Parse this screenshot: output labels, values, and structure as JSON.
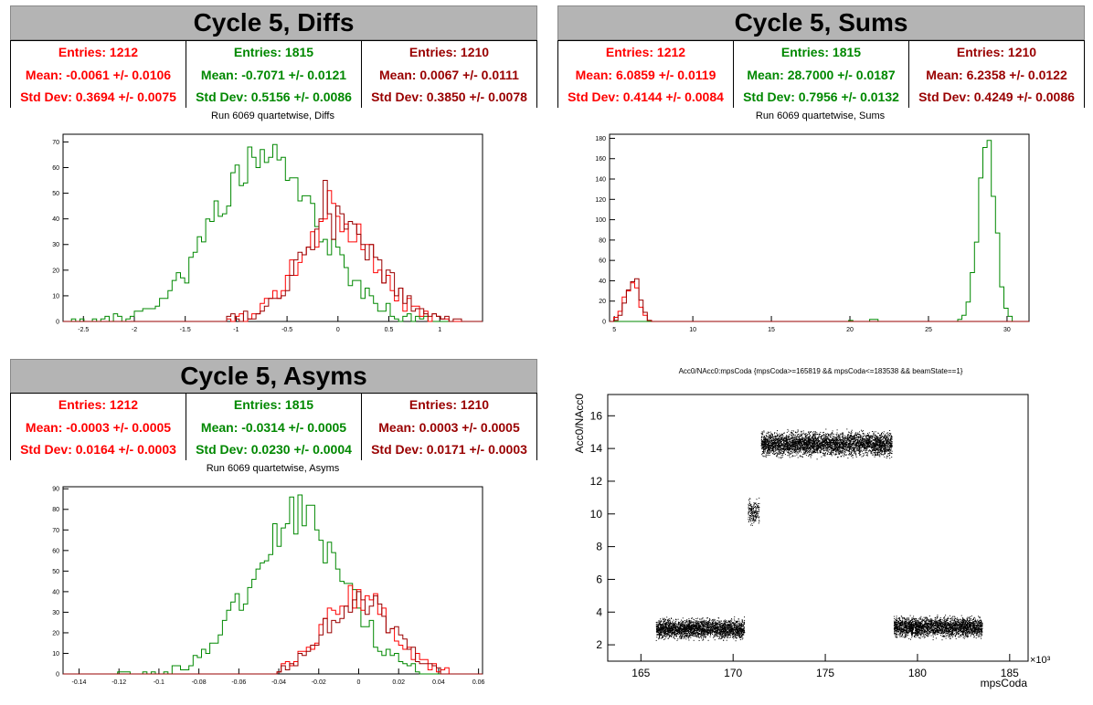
{
  "panels": {
    "diffs": {
      "title": "Cycle 5, Diffs",
      "subtitle": "Run 6069 quartetwise, Diffs",
      "stats": [
        {
          "color": "#ff0000",
          "entries": "Entries: 1212",
          "mean": "Mean: -0.0061 +/- 0.0106",
          "std": "Std Dev: 0.3694 +/- 0.0075"
        },
        {
          "color": "#008800",
          "entries": "Entries: 1815",
          "mean": "Mean: -0.7071 +/- 0.0121",
          "std": "Std Dev: 0.5156 +/- 0.0086"
        },
        {
          "color": "#990000",
          "entries": "Entries: 1210",
          "mean": "Mean: 0.0067 +/- 0.0111",
          "std": "Std Dev: 0.3850 +/- 0.0078"
        }
      ]
    },
    "sums": {
      "title": "Cycle 5, Sums",
      "subtitle": "Run 6069 quartetwise, Sums",
      "stats": [
        {
          "color": "#ff0000",
          "entries": "Entries: 1212",
          "mean": "Mean: 6.0859 +/- 0.0119",
          "std": "Std Dev: 0.4144 +/- 0.0084"
        },
        {
          "color": "#008800",
          "entries": "Entries: 1815",
          "mean": "Mean: 28.7000 +/- 0.0187",
          "std": "Std Dev: 0.7956 +/- 0.0132"
        },
        {
          "color": "#990000",
          "entries": "Entries: 1210",
          "mean": "Mean: 6.2358 +/- 0.0122",
          "std": "Std Dev: 0.4249 +/- 0.0086"
        }
      ]
    },
    "asyms": {
      "title": "Cycle 5, Asyms",
      "subtitle": "Run 6069 quartetwise, Asyms",
      "stats": [
        {
          "color": "#ff0000",
          "entries": "Entries: 1212",
          "mean": "Mean: -0.0003 +/- 0.0005",
          "std": "Std Dev: 0.0164 +/- 0.0003"
        },
        {
          "color": "#008800",
          "entries": "Entries: 1815",
          "mean": "Mean: -0.0314 +/- 0.0005",
          "std": "Std Dev: 0.0230 +/- 0.0004"
        },
        {
          "color": "#990000",
          "entries": "Entries: 1210",
          "mean": "Mean: 0.0003 +/- 0.0005",
          "std": "Std Dev: 0.0171 +/- 0.0003"
        }
      ]
    },
    "scatter": {
      "title": "Acc0/NAcc0:mpsCoda {mpsCoda>=165819 && mpsCoda<=183538 && beamState==1}",
      "xlabel": "mpsCoda",
      "ylabel": "Acc0/NAcc0",
      "xexp": "×10³"
    }
  },
  "chart_data": [
    {
      "type": "histogram",
      "name": "diffs",
      "xlim": [
        -2.7,
        1.42
      ],
      "ylim": [
        0,
        73
      ],
      "xticks": [
        -2.5,
        -2,
        -1.5,
        -1,
        -0.5,
        0,
        0.5,
        1
      ],
      "xticklabels": [
        "-2.5",
        "-2",
        "-1.5",
        "-1",
        "-0.5",
        "0",
        "0.5",
        "1"
      ],
      "yticks": [
        0,
        10,
        20,
        30,
        40,
        50,
        60,
        70
      ],
      "yticklabels": [
        "0",
        "10",
        "20",
        "30",
        "40",
        "50",
        "60",
        "70"
      ],
      "series": [
        {
          "color": "#008800",
          "peaks": [
            [
              -0.95,
              56
            ],
            [
              -0.82,
              63
            ],
            [
              -0.68,
              67
            ],
            [
              -0.55,
              70
            ],
            [
              -0.42,
              58
            ],
            [
              -0.3,
              54
            ]
          ],
          "mean": -0.7,
          "sigma": 0.52,
          "amp": 62,
          "range": [
            -2.6,
            1.0
          ],
          "seed": 11
        },
        {
          "color": "#ff0000",
          "mean": -0.01,
          "sigma": 0.37,
          "amp": 40,
          "range": [
            -1.1,
            1.2
          ],
          "seed": 23,
          "spike": [
            [
              -0.1,
              51
            ],
            [
              -0.05,
              46
            ]
          ]
        },
        {
          "color": "#990000",
          "mean": 0.01,
          "sigma": 0.385,
          "amp": 38,
          "range": [
            -1.1,
            1.2
          ],
          "seed": 37,
          "spike": [
            [
              -0.12,
              55
            ]
          ]
        }
      ]
    },
    {
      "type": "histogram",
      "name": "sums",
      "xlim": [
        4.7,
        31.4
      ],
      "ylim": [
        0,
        184
      ],
      "xticks": [
        5,
        10,
        15,
        20,
        25,
        30
      ],
      "xticklabels": [
        "5",
        "10",
        "15",
        "20",
        "25",
        "30"
      ],
      "yticks": [
        0,
        20,
        40,
        60,
        80,
        100,
        120,
        140,
        160,
        180
      ],
      "yticklabels": [
        "0",
        "20",
        "40",
        "60",
        "80",
        "100",
        "120",
        "140",
        "160",
        "180"
      ],
      "series": [
        {
          "color": "#008800",
          "mean": 28.7,
          "sigma": 0.55,
          "amp": 175,
          "range": [
            26.5,
            30.6
          ],
          "seed": 5,
          "tail": [
            [
              20.0,
              1
            ],
            [
              21.5,
              2
            ]
          ]
        },
        {
          "color": "#ff0000",
          "mean": 6.09,
          "sigma": 0.41,
          "amp": 40,
          "range": [
            4.9,
            7.4
          ],
          "seed": 7
        },
        {
          "color": "#990000",
          "mean": 6.24,
          "sigma": 0.42,
          "amp": 42,
          "range": [
            4.9,
            7.6
          ],
          "seed": 9
        }
      ]
    },
    {
      "type": "histogram",
      "name": "asyms",
      "xlim": [
        -0.148,
        0.062
      ],
      "ylim": [
        0,
        91
      ],
      "xticks": [
        -0.14,
        -0.12,
        -0.1,
        -0.08,
        -0.06,
        -0.04,
        -0.02,
        0,
        0.02,
        0.04,
        0.06
      ],
      "xticklabels": [
        "-0.14",
        "-0.12",
        "-0.1",
        "-0.08",
        "-0.06",
        "-0.04",
        "-0.02",
        "0",
        "0.02",
        "0.04",
        "0.06"
      ],
      "yticks": [
        0,
        10,
        20,
        30,
        40,
        50,
        60,
        70,
        80,
        90
      ],
      "yticklabels": [
        "0",
        "10",
        "20",
        "30",
        "40",
        "50",
        "60",
        "70",
        "80",
        "90"
      ],
      "series": [
        {
          "color": "#008800",
          "mean": -0.031,
          "sigma": 0.023,
          "amp": 76,
          "range": [
            -0.12,
            0.03
          ],
          "seed": 41,
          "spike": [
            [
              -0.029,
              87
            ],
            [
              -0.024,
              82
            ]
          ]
        },
        {
          "color": "#ff0000",
          "mean": 0.0,
          "sigma": 0.0164,
          "amp": 39,
          "range": [
            -0.04,
            0.05
          ],
          "seed": 43
        },
        {
          "color": "#990000",
          "mean": 0.0,
          "sigma": 0.0171,
          "amp": 37,
          "range": [
            -0.04,
            0.05
          ],
          "seed": 47
        }
      ]
    },
    {
      "type": "scatter",
      "name": "acc0_vs_mpscoda",
      "xlim": [
        163.2,
        186.0
      ],
      "ylim": [
        1.0,
        17.3
      ],
      "xticks": [
        165,
        170,
        175,
        180,
        185
      ],
      "xticklabels": [
        "165",
        "170",
        "175",
        "180",
        "185"
      ],
      "yticks": [
        2,
        4,
        6,
        8,
        10,
        12,
        14,
        16
      ],
      "yticklabels": [
        "2",
        "4",
        "6",
        "8",
        "10",
        "12",
        "14",
        "16"
      ],
      "clusters": [
        {
          "x": [
            165.8,
            170.6
          ],
          "y": 3.0,
          "spread": 0.55,
          "n": 2600
        },
        {
          "x": [
            170.8,
            171.4
          ],
          "y": 10.1,
          "spread": 0.75,
          "n": 180
        },
        {
          "x": [
            171.5,
            178.6
          ],
          "y": 14.3,
          "spread": 0.65,
          "n": 3800
        },
        {
          "x": [
            178.7,
            183.5
          ],
          "y": 3.1,
          "spread": 0.55,
          "n": 2600
        }
      ]
    }
  ]
}
